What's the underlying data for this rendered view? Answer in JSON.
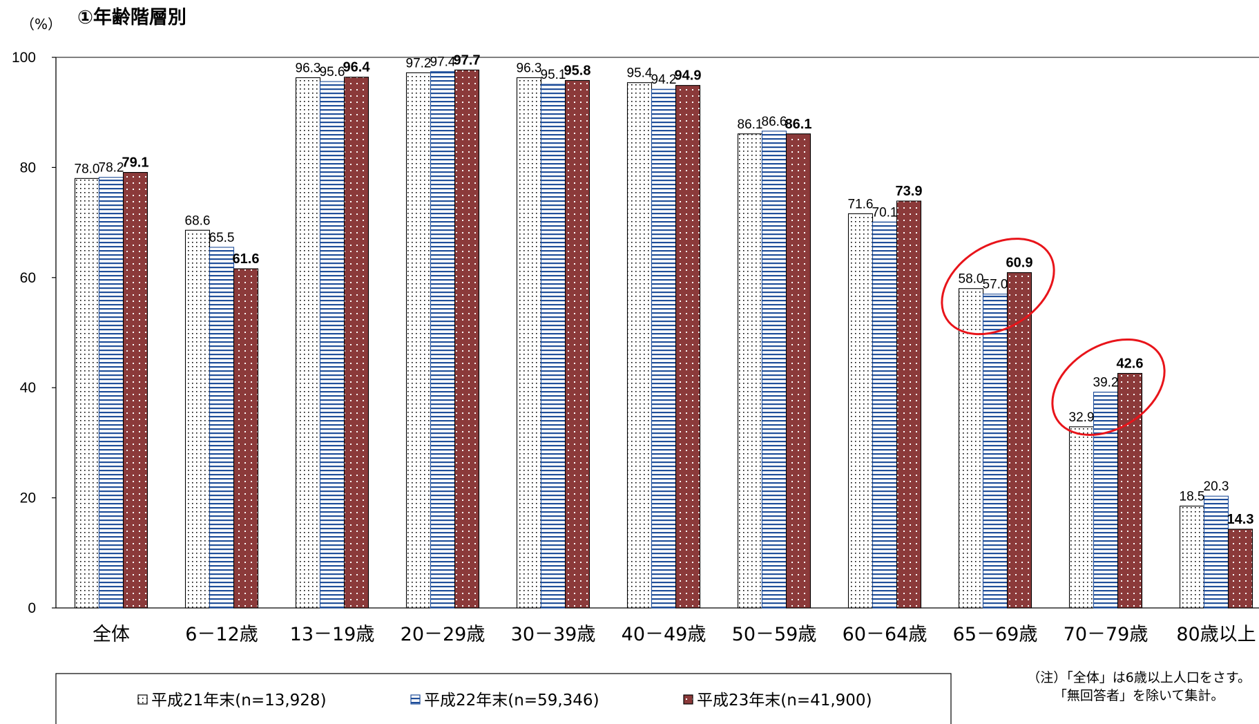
{
  "chart_data": {
    "type": "bar",
    "title": "①年齢階層別",
    "ylabel": "（%）",
    "xlabel": "",
    "ylim": [
      0,
      100
    ],
    "yticks": [
      0,
      20,
      40,
      60,
      80,
      100
    ],
    "categories": [
      "全体",
      "6－12歳",
      "13－19歳",
      "20－29歳",
      "30－39歳",
      "40－49歳",
      "50－59歳",
      "60－64歳",
      "65－69歳",
      "70－79歳",
      "80歳以上"
    ],
    "series": [
      {
        "name": "平成21年末(n=13,928)",
        "values": [
          78.0,
          68.6,
          96.3,
          97.2,
          96.3,
          95.4,
          86.1,
          71.6,
          58.0,
          32.9,
          18.5
        ],
        "labels": [
          "78.0",
          "68.6",
          "96.3",
          "97.2",
          "96.3",
          "95.4",
          "86.1",
          "71.6",
          "58.0",
          "32.9",
          "18.5"
        ]
      },
      {
        "name": "平成22年末(n=59,346)",
        "values": [
          78.2,
          65.5,
          95.6,
          97.4,
          95.1,
          94.2,
          86.6,
          70.1,
          57.0,
          39.2,
          20.3
        ],
        "labels": [
          "78.2",
          "65.5",
          "95.6",
          "97.4",
          "95.1",
          "94.2",
          "86.6",
          "70.1",
          "57.0",
          "39.2",
          "20.3"
        ]
      },
      {
        "name": "平成23年末(n=41,900)",
        "values": [
          79.1,
          61.6,
          96.4,
          97.7,
          95.8,
          94.9,
          86.1,
          73.9,
          60.9,
          42.6,
          14.3
        ],
        "labels": [
          "79.1",
          "61.6",
          "96.4",
          "97.7",
          "95.8",
          "94.9",
          "86.1",
          "73.9",
          "60.9",
          "42.6",
          "14.3"
        ]
      }
    ],
    "highlighted_categories": [
      "65－69歳",
      "70－79歳"
    ],
    "grid": false,
    "legend_position": "bottom",
    "colors": {
      "series1_fill": "#ffffff",
      "series1_dots": "#000000",
      "series2_stripe": "#1f4e9a",
      "series2_fill": "#ffffff",
      "series3_fill": "#8b3a3a",
      "series3_dots": "#ffffff",
      "highlight": "#e8141a"
    }
  },
  "note": {
    "line1": "（注）「全体」は6歳以上人口をさす。",
    "line2": "「無回答者」を除いて集計。"
  }
}
